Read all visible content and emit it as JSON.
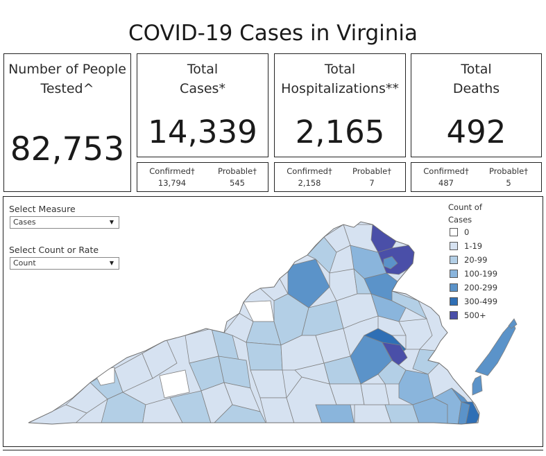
{
  "page": {
    "title": "COVID-19 Cases in Virginia"
  },
  "kpis": {
    "tested": {
      "label_line1": "Number of People",
      "label_line2": "Tested^",
      "value": "82,753"
    },
    "cases": {
      "label_line1": "Total",
      "label_line2": "Cases*",
      "value": "14,339",
      "confirmed_label": "Confirmed†",
      "confirmed_value": "13,794",
      "probable_label": "Probable†",
      "probable_value": "545"
    },
    "hospitalizations": {
      "label_line1": "Total",
      "label_line2": "Hospitalizations**",
      "value": "2,165",
      "confirmed_label": "Confirmed†",
      "confirmed_value": "2,158",
      "probable_label": "Probable†",
      "probable_value": "7"
    },
    "deaths": {
      "label_line1": "Total",
      "label_line2": "Deaths",
      "value": "492",
      "confirmed_label": "Confirmed†",
      "confirmed_value": "487",
      "probable_label": "Probable†",
      "probable_value": "5"
    }
  },
  "controls": {
    "measure": {
      "label": "Select Measure",
      "value": "Cases"
    },
    "count_or_rate": {
      "label": "Select Count or Rate",
      "value": "Count"
    }
  },
  "legend": {
    "title_line1": "Count of",
    "title_line2": "Cases",
    "items": [
      {
        "label": "0",
        "color": "#ffffff"
      },
      {
        "label": "1-19",
        "color": "#d6e2f1"
      },
      {
        "label": "20-99",
        "color": "#b3cfe6"
      },
      {
        "label": "100-199",
        "color": "#8ab5dc"
      },
      {
        "label": "200-299",
        "color": "#5b93c9"
      },
      {
        "label": "300-499",
        "color": "#2f6fb5"
      },
      {
        "label": "500+",
        "color": "#4a4fa8"
      }
    ]
  },
  "colors": {
    "border": "#222222",
    "map_outline": "#808080"
  }
}
